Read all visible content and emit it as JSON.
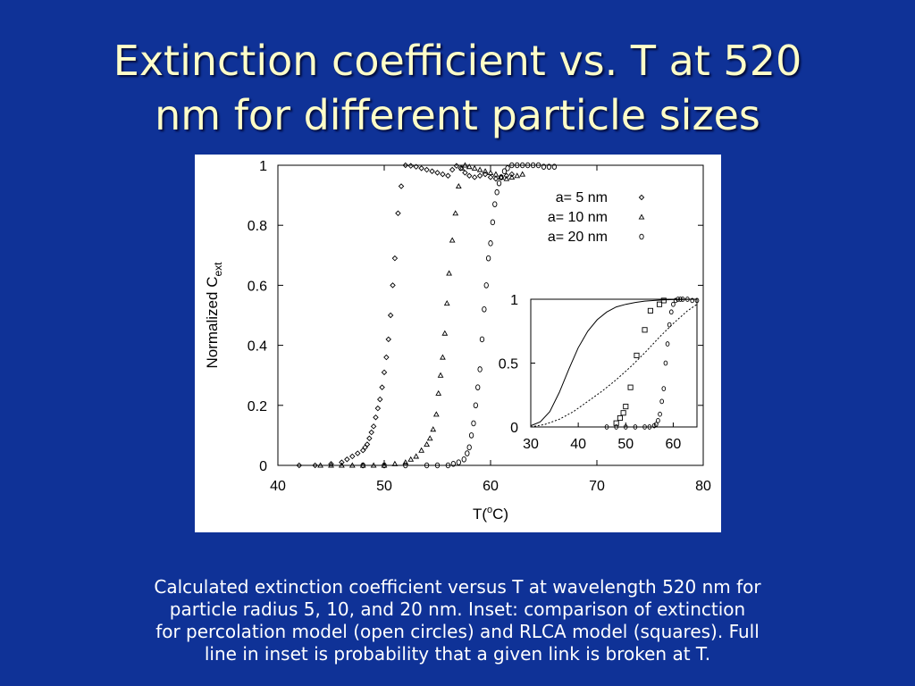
{
  "slide": {
    "title_lines": [
      "Extinction coefficient vs. T at 520",
      "nm for different particle sizes"
    ],
    "caption_lines": [
      "Calculated  extinction coefficient versus T at wavelength 520 nm for",
      "particle radius 5, 10, and 20 nm.  Inset: comparison of extinction",
      "for percolation model (open circles) and RLCA model (squares).  Full",
      "line in inset is probability that a given link is broken at T."
    ]
  },
  "chart_data": [
    {
      "type": "scatter",
      "title": "",
      "xlabel": "T(",
      "xlabel_sup": "o",
      "xlabel_tail": "C)",
      "ylabel": "Normalized C",
      "ylabel_sub": "ext",
      "xlim": [
        40,
        80
      ],
      "ylim": [
        0,
        1
      ],
      "xticks": [
        "40",
        "50",
        "60",
        "70",
        "80"
      ],
      "yticks": [
        "0",
        "0.2",
        "0.4",
        "0.6",
        "0.8",
        "1"
      ],
      "legend_position": "top-right",
      "series": [
        {
          "name": "a=  5 nm",
          "marker": "diamond",
          "x": [
            42,
            43.5,
            45,
            46,
            46.5,
            47,
            47.5,
            48,
            48.2,
            48.4,
            48.6,
            48.8,
            49,
            49.2,
            49.4,
            49.6,
            49.8,
            50,
            50.2,
            50.4,
            50.6,
            50.8,
            51,
            51.3,
            51.6,
            52,
            52.5,
            53,
            53.5,
            54,
            54.5,
            55,
            55.5,
            56,
            56.4,
            56.8,
            57.2,
            57.6,
            58,
            58.5,
            59,
            59.5,
            60,
            60.5,
            61,
            61.5,
            62
          ],
          "y": [
            0,
            0,
            0.005,
            0.01,
            0.02,
            0.03,
            0.04,
            0.05,
            0.06,
            0.07,
            0.09,
            0.11,
            0.13,
            0.16,
            0.19,
            0.22,
            0.26,
            0.31,
            0.36,
            0.42,
            0.5,
            0.6,
            0.69,
            0.84,
            0.93,
            1.0,
            0.998,
            0.995,
            0.99,
            0.985,
            0.98,
            0.975,
            0.97,
            0.965,
            0.985,
            0.998,
            0.99,
            0.975,
            0.965,
            0.96,
            0.965,
            0.97,
            0.96,
            0.955,
            0.96,
            0.965,
            0.97
          ]
        },
        {
          "name": "a= 10 nm",
          "marker": "triangle",
          "x": [
            44,
            45,
            46,
            47,
            48,
            49,
            50,
            51,
            52,
            52.5,
            53,
            53.5,
            54,
            54.3,
            54.6,
            54.9,
            55.1,
            55.3,
            55.5,
            55.7,
            55.9,
            56.1,
            56.4,
            56.7,
            57,
            57.3,
            57.6,
            58,
            58.5,
            59,
            59.5,
            60,
            60.5,
            61,
            61.5,
            62,
            62.5,
            63
          ],
          "y": [
            0,
            0,
            0,
            0,
            0,
            0,
            0,
            0.005,
            0.01,
            0.02,
            0.03,
            0.05,
            0.07,
            0.09,
            0.12,
            0.17,
            0.24,
            0.3,
            0.36,
            0.44,
            0.54,
            0.64,
            0.75,
            0.84,
            0.93,
            0.99,
            1.0,
            0.995,
            0.99,
            0.985,
            0.98,
            0.975,
            0.97,
            0.96,
            0.955,
            0.96,
            0.965,
            0.97
          ]
        },
        {
          "name": "a= 20 nm",
          "marker": "circle",
          "x": [
            48,
            50,
            52,
            54,
            55,
            56,
            56.5,
            57,
            57.5,
            57.8,
            58,
            58.2,
            58.4,
            58.6,
            58.8,
            59,
            59.2,
            59.4,
            59.6,
            59.8,
            60,
            60.2,
            60.4,
            60.6,
            60.8,
            61,
            61.3,
            61.6,
            62,
            62.5,
            63,
            63.5,
            64,
            64.5,
            65,
            65.5,
            66
          ],
          "y": [
            0,
            0,
            0,
            0,
            0,
            0,
            0.005,
            0.01,
            0.02,
            0.04,
            0.06,
            0.1,
            0.14,
            0.2,
            0.26,
            0.32,
            0.42,
            0.52,
            0.6,
            0.69,
            0.74,
            0.81,
            0.87,
            0.91,
            0.94,
            0.96,
            0.98,
            0.99,
            1.0,
            1.0,
            1.0,
            1.0,
            1.0,
            1.0,
            0.995,
            0.995,
            0.995
          ]
        }
      ]
    },
    {
      "type": "scatter",
      "title": "",
      "xlim": [
        30,
        65
      ],
      "ylim": [
        0,
        1
      ],
      "xticks": [
        "30",
        "40",
        "50",
        "60"
      ],
      "yticks": [
        "0",
        "0.5",
        "1"
      ],
      "series": [
        {
          "name": "",
          "marker": "square",
          "x": [
            48,
            48.8,
            49.5,
            50,
            51,
            52.3,
            54,
            55.2,
            57.1,
            58
          ],
          "y": [
            0.03,
            0.07,
            0.11,
            0.16,
            0.31,
            0.56,
            0.76,
            0.91,
            0.96,
            0.99
          ]
        },
        {
          "name": "",
          "marker": "circle",
          "x": [
            46,
            48,
            50,
            52,
            54,
            55,
            56,
            56.4,
            56.8,
            57.2,
            57.6,
            58,
            58.4,
            58.8,
            59.2,
            59.6,
            60,
            60.5,
            61,
            61.5,
            62,
            63,
            64,
            65
          ],
          "y": [
            0,
            0,
            0,
            0,
            0,
            0,
            0.01,
            0.02,
            0.05,
            0.1,
            0.2,
            0.3,
            0.5,
            0.65,
            0.8,
            0.9,
            0.96,
            0.99,
            1.0,
            1.0,
            1.0,
            1.0,
            0.99,
            0.99
          ]
        },
        {
          "name": "",
          "marker": "line-solid",
          "x": [
            30,
            32,
            34,
            36,
            38,
            40,
            42,
            44,
            46,
            48,
            50,
            52,
            54,
            56,
            58,
            60,
            62,
            65
          ],
          "y": [
            0.01,
            0.04,
            0.12,
            0.27,
            0.45,
            0.62,
            0.75,
            0.84,
            0.9,
            0.94,
            0.96,
            0.975,
            0.985,
            0.99,
            0.995,
            0.997,
            0.998,
            1.0
          ]
        },
        {
          "name": "",
          "marker": "line-dotted",
          "x": [
            30,
            33,
            36,
            39,
            42,
            45,
            48,
            51,
            54,
            57,
            60,
            63,
            65
          ],
          "y": [
            0.0,
            0.02,
            0.06,
            0.12,
            0.2,
            0.28,
            0.37,
            0.47,
            0.58,
            0.7,
            0.81,
            0.91,
            0.96
          ]
        }
      ]
    }
  ]
}
